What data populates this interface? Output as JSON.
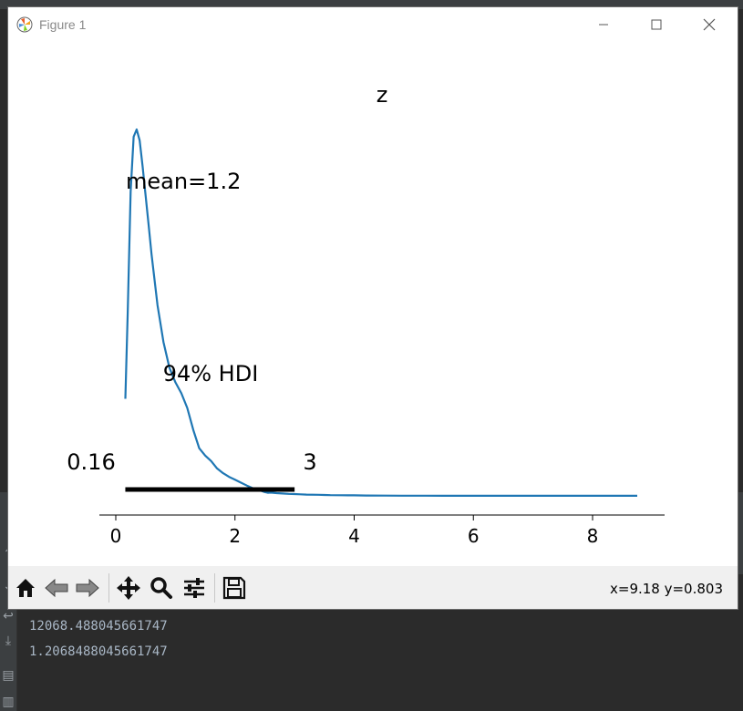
{
  "window": {
    "title": "Figure 1"
  },
  "chart_data": {
    "type": "line",
    "title": "z",
    "annotations": {
      "mean_label": "mean=1.2",
      "hdi_label": "94% HDI",
      "hdi_low_label": "0.16",
      "hdi_high_label": "3"
    },
    "hdi": [
      0.16,
      3.0
    ],
    "xlim": [
      -0.3,
      9.2
    ],
    "xticks": [
      0,
      2,
      4,
      6,
      8
    ],
    "show_yaxis": false,
    "series": [
      {
        "color": "#1f77b4",
        "x": [
          0.16,
          0.2,
          0.25,
          0.3,
          0.35,
          0.4,
          0.45,
          0.5,
          0.55,
          0.6,
          0.7,
          0.8,
          0.9,
          1.0,
          1.1,
          1.2,
          1.3,
          1.4,
          1.5,
          1.6,
          1.7,
          1.8,
          1.9,
          2.0,
          2.1,
          2.2,
          2.3,
          2.4,
          2.5,
          2.55,
          2.6,
          2.7,
          2.8,
          2.9,
          3.0,
          3.1,
          3.2,
          3.4,
          3.5,
          3.6,
          3.8,
          4.0,
          4.1,
          4.2,
          4.5,
          4.8,
          5.0,
          5.2,
          5.5,
          6.0,
          6.5,
          7.0,
          7.5,
          8.0,
          8.5,
          8.75
        ],
        "y": [
          0.265,
          0.5,
          0.83,
          0.98,
          1.0,
          0.97,
          0.9,
          0.82,
          0.74,
          0.66,
          0.52,
          0.42,
          0.35,
          0.31,
          0.28,
          0.24,
          0.18,
          0.13,
          0.11,
          0.095,
          0.075,
          0.062,
          0.052,
          0.044,
          0.036,
          0.028,
          0.021,
          0.016,
          0.0105,
          0.0085,
          0.009,
          0.0075,
          0.0065,
          0.0055,
          0.005,
          0.0042,
          0.0036,
          0.003,
          0.0025,
          0.002,
          0.0017,
          0.0015,
          0.0013,
          0.0011,
          0.0008,
          0.0006,
          0.0005,
          0.0004,
          0.00035,
          0.0003,
          0.00025,
          0.0002,
          0.00018,
          0.00017,
          0.00016,
          0.00015
        ]
      }
    ]
  },
  "toolbar": {
    "coords_text": "x=9.18 y=0.803"
  },
  "console": {
    "lines": [
      "12068.488045661747",
      "1.2068488045661747"
    ]
  }
}
